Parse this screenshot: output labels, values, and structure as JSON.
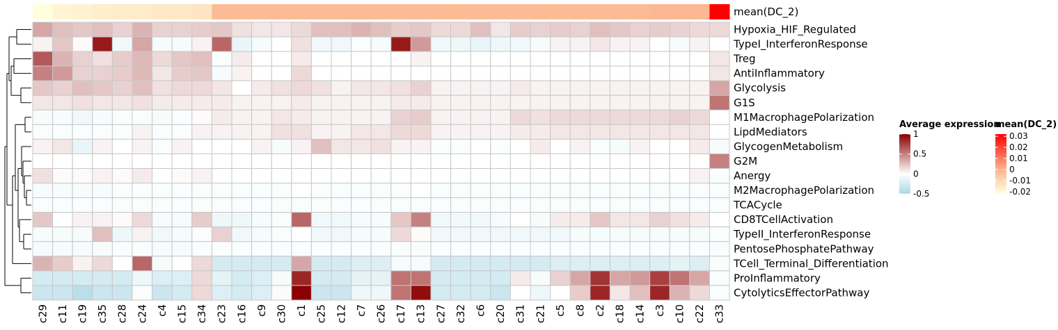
{
  "chart_data": {
    "type": "heatmap",
    "columns": [
      "c29",
      "c11",
      "c19",
      "c35",
      "c28",
      "c24",
      "c4",
      "c15",
      "c34",
      "c23",
      "c16",
      "c9",
      "c30",
      "c1",
      "c25",
      "c12",
      "c7",
      "c26",
      "c17",
      "c13",
      "c27",
      "c32",
      "c6",
      "c20",
      "c31",
      "c21",
      "c5",
      "c8",
      "c2",
      "c18",
      "c14",
      "c3",
      "c10",
      "c22",
      "c33"
    ],
    "rows": [
      "Hypoxia_HIF_Regulated",
      "TypeI_InterferonResponse",
      "Treg",
      "AntiInflammatory",
      "Glycolysis",
      "G1S",
      "M1MacrophagePolarization",
      "LipdMediators",
      "GlycogenMetabolism",
      "G2M",
      "Anergy",
      "M2MacrophagePolarization",
      "TCACycle",
      "CD8TCellActivation",
      "TypeII_InterferonResponse",
      "PentosePhosphatePathway",
      "TCell_Terminal_Differentiation",
      "ProInflammatory",
      "CytolyticsEffectorPathway"
    ],
    "values": [
      [
        0.35,
        0.25,
        0.22,
        0.25,
        0.18,
        0.3,
        0.18,
        0.18,
        0.2,
        0.22,
        0.12,
        0.1,
        0.1,
        0.15,
        0.25,
        0.25,
        0.3,
        0.25,
        0.2,
        0.22,
        0.15,
        0.15,
        0.25,
        0.1,
        0.2,
        0.18,
        0.2,
        0.18,
        0.25,
        0.22,
        0.18,
        0.2,
        0.18,
        0.15,
        0.15
      ],
      [
        0.05,
        0.22,
        0.02,
        0.9,
        -0.08,
        0.35,
        -0.05,
        -0.05,
        0.05,
        0.6,
        -0.12,
        -0.05,
        0.0,
        0.12,
        -0.08,
        -0.08,
        -0.03,
        -0.05,
        0.9,
        0.4,
        -0.08,
        -0.1,
        -0.12,
        -0.1,
        -0.08,
        -0.05,
        0.05,
        0.05,
        0.1,
        0.05,
        0.05,
        0.0,
        -0.05,
        0.05,
        0.0
      ],
      [
        0.65,
        0.3,
        0.18,
        0.12,
        0.2,
        0.28,
        0.15,
        0.22,
        0.25,
        -0.03,
        0.08,
        0.0,
        0.0,
        0.08,
        0.0,
        0.0,
        0.0,
        0.0,
        0.0,
        0.05,
        0.0,
        0.0,
        0.0,
        0.0,
        0.0,
        0.0,
        0.0,
        0.0,
        0.0,
        0.0,
        0.0,
        0.0,
        0.0,
        0.0,
        0.1
      ],
      [
        0.5,
        0.4,
        0.18,
        0.18,
        0.2,
        0.28,
        0.1,
        0.2,
        0.22,
        -0.05,
        0.05,
        0.0,
        0.0,
        0.15,
        0.0,
        0.0,
        0.0,
        0.0,
        0.0,
        0.0,
        0.0,
        0.0,
        0.0,
        0.0,
        0.0,
        0.0,
        0.0,
        0.0,
        0.0,
        0.0,
        0.0,
        0.0,
        0.0,
        0.0,
        0.1
      ],
      [
        0.22,
        0.18,
        0.25,
        0.22,
        0.18,
        0.25,
        0.12,
        0.15,
        0.15,
        0.1,
        0.0,
        0.08,
        0.12,
        0.15,
        0.12,
        0.05,
        0.1,
        0.1,
        0.12,
        0.18,
        0.05,
        0.05,
        0.05,
        0.05,
        0.08,
        0.05,
        0.05,
        0.05,
        0.05,
        0.05,
        0.05,
        0.05,
        0.05,
        0.05,
        0.35
      ],
      [
        0.1,
        0.1,
        0.12,
        0.1,
        0.1,
        0.12,
        0.08,
        0.08,
        0.08,
        0.08,
        0.05,
        0.05,
        0.05,
        0.08,
        0.05,
        0.05,
        0.05,
        0.05,
        0.08,
        0.08,
        0.05,
        0.05,
        0.05,
        0.05,
        0.05,
        0.05,
        0.05,
        0.05,
        0.05,
        0.05,
        0.05,
        0.05,
        0.05,
        0.05,
        0.55
      ],
      [
        -0.05,
        -0.05,
        -0.08,
        -0.05,
        -0.03,
        -0.03,
        -0.05,
        -0.03,
        0.02,
        0.08,
        0.05,
        0.05,
        0.1,
        0.08,
        0.05,
        0.05,
        0.05,
        0.05,
        0.18,
        0.2,
        0.05,
        0.05,
        0.05,
        0.05,
        0.15,
        0.12,
        0.15,
        0.15,
        0.15,
        0.15,
        0.15,
        0.15,
        0.18,
        0.15,
        0.0
      ],
      [
        -0.03,
        -0.03,
        -0.03,
        -0.03,
        -0.03,
        0.05,
        -0.03,
        -0.03,
        0.05,
        0.05,
        0.05,
        0.05,
        0.12,
        0.12,
        0.05,
        0.05,
        0.1,
        0.1,
        0.15,
        0.15,
        0.05,
        0.05,
        0.05,
        0.05,
        0.08,
        0.08,
        0.1,
        0.1,
        0.1,
        0.1,
        0.1,
        0.1,
        0.1,
        0.1,
        0.0
      ],
      [
        0.05,
        0.1,
        -0.12,
        0.05,
        0.0,
        0.05,
        -0.03,
        0.05,
        0.0,
        0.0,
        0.0,
        0.05,
        -0.05,
        0.05,
        0.25,
        0.1,
        0.1,
        0.12,
        0.05,
        0.05,
        -0.03,
        -0.03,
        0.0,
        -0.03,
        0.0,
        0.08,
        0.0,
        0.05,
        -0.03,
        -0.05,
        0.05,
        0.0,
        0.0,
        0.08,
        -0.05
      ],
      [
        0.0,
        0.0,
        0.0,
        0.0,
        0.0,
        0.0,
        0.0,
        0.0,
        0.0,
        0.0,
        0.0,
        0.0,
        0.0,
        0.0,
        0.0,
        0.0,
        0.0,
        0.0,
        0.0,
        0.0,
        0.0,
        0.0,
        0.0,
        0.0,
        0.0,
        0.0,
        0.0,
        0.0,
        0.0,
        0.0,
        0.0,
        0.0,
        0.0,
        0.0,
        0.5
      ],
      [
        0.12,
        0.02,
        0.02,
        0.05,
        0.02,
        0.08,
        0.0,
        0.02,
        0.05,
        0.0,
        0.0,
        0.0,
        0.0,
        0.0,
        0.0,
        0.0,
        0.0,
        0.0,
        0.0,
        0.0,
        0.0,
        0.0,
        0.0,
        0.0,
        0.0,
        0.0,
        0.0,
        0.0,
        0.0,
        0.0,
        0.0,
        0.0,
        0.0,
        0.05,
        -0.03
      ],
      [
        -0.05,
        -0.05,
        -0.05,
        -0.05,
        -0.03,
        -0.03,
        -0.03,
        -0.03,
        -0.03,
        -0.03,
        -0.03,
        -0.03,
        -0.03,
        0.0,
        -0.03,
        -0.03,
        -0.03,
        -0.03,
        -0.03,
        0.0,
        -0.03,
        -0.03,
        -0.03,
        -0.03,
        -0.03,
        -0.03,
        -0.03,
        -0.03,
        -0.03,
        -0.03,
        -0.03,
        -0.03,
        -0.03,
        -0.03,
        -0.03
      ],
      [
        -0.03,
        -0.03,
        -0.03,
        -0.03,
        -0.03,
        -0.03,
        -0.03,
        -0.03,
        -0.03,
        -0.03,
        -0.03,
        -0.03,
        -0.03,
        -0.03,
        -0.03,
        -0.03,
        -0.03,
        -0.03,
        -0.03,
        -0.03,
        -0.03,
        -0.03,
        -0.03,
        -0.03,
        -0.03,
        -0.03,
        -0.03,
        -0.03,
        -0.03,
        -0.03,
        -0.03,
        -0.03,
        -0.03,
        -0.03,
        -0.03
      ],
      [
        0.22,
        0.0,
        0.05,
        0.05,
        0.02,
        0.15,
        -0.05,
        -0.05,
        0.2,
        -0.1,
        -0.1,
        -0.05,
        -0.03,
        0.6,
        -0.08,
        -0.08,
        -0.05,
        -0.05,
        0.22,
        0.5,
        -0.08,
        -0.08,
        -0.08,
        -0.05,
        0.0,
        -0.05,
        0.08,
        0.08,
        0.22,
        0.1,
        0.1,
        0.18,
        0.12,
        0.08,
        0.0
      ],
      [
        -0.05,
        -0.05,
        -0.05,
        0.25,
        -0.1,
        0.05,
        -0.08,
        -0.05,
        -0.03,
        0.18,
        -0.08,
        -0.05,
        -0.03,
        0.0,
        -0.08,
        -0.08,
        -0.05,
        -0.05,
        0.15,
        0.02,
        -0.08,
        -0.08,
        -0.08,
        -0.08,
        -0.08,
        -0.08,
        -0.08,
        -0.05,
        -0.05,
        -0.05,
        -0.05,
        -0.05,
        -0.05,
        -0.05,
        -0.03
      ],
      [
        -0.05,
        -0.05,
        -0.05,
        -0.05,
        -0.03,
        -0.03,
        -0.05,
        -0.05,
        -0.03,
        -0.03,
        -0.03,
        -0.03,
        -0.03,
        -0.03,
        -0.03,
        -0.03,
        -0.03,
        -0.03,
        -0.03,
        -0.03,
        -0.03,
        -0.03,
        -0.03,
        -0.03,
        -0.03,
        -0.03,
        -0.03,
        -0.03,
        -0.03,
        -0.03,
        -0.03,
        -0.03,
        -0.03,
        -0.03,
        -0.03
      ],
      [
        0.3,
        0.2,
        0.05,
        0.15,
        0.0,
        0.6,
        -0.05,
        0.0,
        0.15,
        -0.25,
        -0.25,
        -0.25,
        -0.25,
        0.35,
        -0.25,
        -0.25,
        -0.2,
        -0.2,
        -0.05,
        -0.05,
        -0.25,
        -0.25,
        -0.25,
        -0.25,
        -0.25,
        -0.25,
        -0.2,
        -0.2,
        -0.2,
        -0.2,
        -0.2,
        -0.2,
        -0.15,
        -0.2,
        -0.03
      ],
      [
        -0.25,
        -0.25,
        -0.25,
        -0.25,
        -0.25,
        -0.1,
        -0.2,
        -0.2,
        0.15,
        -0.15,
        -0.25,
        -0.2,
        -0.05,
        0.85,
        -0.25,
        -0.25,
        -0.15,
        -0.15,
        0.55,
        0.55,
        -0.25,
        -0.25,
        -0.25,
        -0.25,
        0.08,
        -0.05,
        0.18,
        0.35,
        0.8,
        0.35,
        0.4,
        0.75,
        0.55,
        0.35,
        -0.03
      ],
      [
        -0.3,
        -0.3,
        -0.4,
        -0.3,
        -0.3,
        -0.03,
        -0.3,
        -0.25,
        0.15,
        -0.2,
        -0.25,
        -0.2,
        0.02,
        1.0,
        -0.3,
        -0.3,
        -0.1,
        -0.1,
        0.55,
        0.95,
        -0.25,
        -0.25,
        -0.25,
        -0.3,
        0.0,
        -0.1,
        0.0,
        0.2,
        0.85,
        0.1,
        0.25,
        0.85,
        0.3,
        0.15,
        -0.03
      ]
    ],
    "annotation": {
      "name": "mean(DC_2)",
      "values": [
        -0.022,
        -0.019,
        -0.018,
        -0.017,
        -0.016,
        -0.016,
        -0.015,
        -0.015,
        -0.014,
        -0.002,
        -0.002,
        -0.002,
        -0.002,
        -0.002,
        -0.002,
        -0.002,
        -0.002,
        -0.002,
        -0.002,
        -0.002,
        -0.002,
        -0.002,
        -0.002,
        -0.002,
        -0.002,
        -0.002,
        -0.002,
        -0.002,
        -0.002,
        -0.002,
        -0.002,
        -0.001,
        -0.001,
        -0.001,
        0.032
      ]
    },
    "legend_expression": {
      "title": "Average expression",
      "range": [
        -0.5,
        1
      ],
      "tick_values": [
        1,
        0.5,
        0,
        -0.5
      ],
      "tick_labels": [
        "1",
        "0.5",
        "0",
        "-0.5"
      ],
      "colors": {
        "low": "#a9d6e5",
        "mid": "#ffffff",
        "high": "#8b0000"
      }
    },
    "legend_annotation": {
      "title": "mean(DC_2)",
      "range": [
        -0.022,
        0.032
      ],
      "tick_values": [
        0.03,
        0.02,
        0.01,
        0,
        -0.01,
        -0.02
      ],
      "tick_labels": [
        "0.03",
        "0.02",
        "0.01",
        "0",
        "-0.01",
        "-0.02"
      ],
      "colors": {
        "low": "#ffffe0",
        "mid": "#fbb58e",
        "high": "#ff0000"
      }
    },
    "grid": true
  }
}
